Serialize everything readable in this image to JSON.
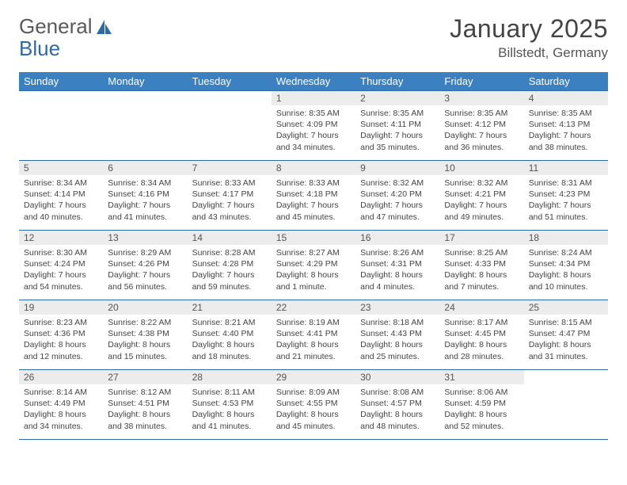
{
  "logo": {
    "text1": "General",
    "text2": "Blue"
  },
  "title": "January 2025",
  "location": "Billstedt, Germany",
  "colors": {
    "header_bg": "#3b81c2",
    "header_text": "#ffffff",
    "border": "#2d6aa8",
    "daynum_bg": "#ececec",
    "logo_gray": "#5a5a5a",
    "logo_blue": "#2d6aa8"
  },
  "weekdays": [
    "Sunday",
    "Monday",
    "Tuesday",
    "Wednesday",
    "Thursday",
    "Friday",
    "Saturday"
  ],
  "weeks": [
    [
      null,
      null,
      null,
      {
        "n": "1",
        "sr": "Sunrise: 8:35 AM",
        "ss": "Sunset: 4:09 PM",
        "d1": "Daylight: 7 hours",
        "d2": "and 34 minutes."
      },
      {
        "n": "2",
        "sr": "Sunrise: 8:35 AM",
        "ss": "Sunset: 4:11 PM",
        "d1": "Daylight: 7 hours",
        "d2": "and 35 minutes."
      },
      {
        "n": "3",
        "sr": "Sunrise: 8:35 AM",
        "ss": "Sunset: 4:12 PM",
        "d1": "Daylight: 7 hours",
        "d2": "and 36 minutes."
      },
      {
        "n": "4",
        "sr": "Sunrise: 8:35 AM",
        "ss": "Sunset: 4:13 PM",
        "d1": "Daylight: 7 hours",
        "d2": "and 38 minutes."
      }
    ],
    [
      {
        "n": "5",
        "sr": "Sunrise: 8:34 AM",
        "ss": "Sunset: 4:14 PM",
        "d1": "Daylight: 7 hours",
        "d2": "and 40 minutes."
      },
      {
        "n": "6",
        "sr": "Sunrise: 8:34 AM",
        "ss": "Sunset: 4:16 PM",
        "d1": "Daylight: 7 hours",
        "d2": "and 41 minutes."
      },
      {
        "n": "7",
        "sr": "Sunrise: 8:33 AM",
        "ss": "Sunset: 4:17 PM",
        "d1": "Daylight: 7 hours",
        "d2": "and 43 minutes."
      },
      {
        "n": "8",
        "sr": "Sunrise: 8:33 AM",
        "ss": "Sunset: 4:18 PM",
        "d1": "Daylight: 7 hours",
        "d2": "and 45 minutes."
      },
      {
        "n": "9",
        "sr": "Sunrise: 8:32 AM",
        "ss": "Sunset: 4:20 PM",
        "d1": "Daylight: 7 hours",
        "d2": "and 47 minutes."
      },
      {
        "n": "10",
        "sr": "Sunrise: 8:32 AM",
        "ss": "Sunset: 4:21 PM",
        "d1": "Daylight: 7 hours",
        "d2": "and 49 minutes."
      },
      {
        "n": "11",
        "sr": "Sunrise: 8:31 AM",
        "ss": "Sunset: 4:23 PM",
        "d1": "Daylight: 7 hours",
        "d2": "and 51 minutes."
      }
    ],
    [
      {
        "n": "12",
        "sr": "Sunrise: 8:30 AM",
        "ss": "Sunset: 4:24 PM",
        "d1": "Daylight: 7 hours",
        "d2": "and 54 minutes."
      },
      {
        "n": "13",
        "sr": "Sunrise: 8:29 AM",
        "ss": "Sunset: 4:26 PM",
        "d1": "Daylight: 7 hours",
        "d2": "and 56 minutes."
      },
      {
        "n": "14",
        "sr": "Sunrise: 8:28 AM",
        "ss": "Sunset: 4:28 PM",
        "d1": "Daylight: 7 hours",
        "d2": "and 59 minutes."
      },
      {
        "n": "15",
        "sr": "Sunrise: 8:27 AM",
        "ss": "Sunset: 4:29 PM",
        "d1": "Daylight: 8 hours",
        "d2": "and 1 minute."
      },
      {
        "n": "16",
        "sr": "Sunrise: 8:26 AM",
        "ss": "Sunset: 4:31 PM",
        "d1": "Daylight: 8 hours",
        "d2": "and 4 minutes."
      },
      {
        "n": "17",
        "sr": "Sunrise: 8:25 AM",
        "ss": "Sunset: 4:33 PM",
        "d1": "Daylight: 8 hours",
        "d2": "and 7 minutes."
      },
      {
        "n": "18",
        "sr": "Sunrise: 8:24 AM",
        "ss": "Sunset: 4:34 PM",
        "d1": "Daylight: 8 hours",
        "d2": "and 10 minutes."
      }
    ],
    [
      {
        "n": "19",
        "sr": "Sunrise: 8:23 AM",
        "ss": "Sunset: 4:36 PM",
        "d1": "Daylight: 8 hours",
        "d2": "and 12 minutes."
      },
      {
        "n": "20",
        "sr": "Sunrise: 8:22 AM",
        "ss": "Sunset: 4:38 PM",
        "d1": "Daylight: 8 hours",
        "d2": "and 15 minutes."
      },
      {
        "n": "21",
        "sr": "Sunrise: 8:21 AM",
        "ss": "Sunset: 4:40 PM",
        "d1": "Daylight: 8 hours",
        "d2": "and 18 minutes."
      },
      {
        "n": "22",
        "sr": "Sunrise: 8:19 AM",
        "ss": "Sunset: 4:41 PM",
        "d1": "Daylight: 8 hours",
        "d2": "and 21 minutes."
      },
      {
        "n": "23",
        "sr": "Sunrise: 8:18 AM",
        "ss": "Sunset: 4:43 PM",
        "d1": "Daylight: 8 hours",
        "d2": "and 25 minutes."
      },
      {
        "n": "24",
        "sr": "Sunrise: 8:17 AM",
        "ss": "Sunset: 4:45 PM",
        "d1": "Daylight: 8 hours",
        "d2": "and 28 minutes."
      },
      {
        "n": "25",
        "sr": "Sunrise: 8:15 AM",
        "ss": "Sunset: 4:47 PM",
        "d1": "Daylight: 8 hours",
        "d2": "and 31 minutes."
      }
    ],
    [
      {
        "n": "26",
        "sr": "Sunrise: 8:14 AM",
        "ss": "Sunset: 4:49 PM",
        "d1": "Daylight: 8 hours",
        "d2": "and 34 minutes."
      },
      {
        "n": "27",
        "sr": "Sunrise: 8:12 AM",
        "ss": "Sunset: 4:51 PM",
        "d1": "Daylight: 8 hours",
        "d2": "and 38 minutes."
      },
      {
        "n": "28",
        "sr": "Sunrise: 8:11 AM",
        "ss": "Sunset: 4:53 PM",
        "d1": "Daylight: 8 hours",
        "d2": "and 41 minutes."
      },
      {
        "n": "29",
        "sr": "Sunrise: 8:09 AM",
        "ss": "Sunset: 4:55 PM",
        "d1": "Daylight: 8 hours",
        "d2": "and 45 minutes."
      },
      {
        "n": "30",
        "sr": "Sunrise: 8:08 AM",
        "ss": "Sunset: 4:57 PM",
        "d1": "Daylight: 8 hours",
        "d2": "and 48 minutes."
      },
      {
        "n": "31",
        "sr": "Sunrise: 8:06 AM",
        "ss": "Sunset: 4:59 PM",
        "d1": "Daylight: 8 hours",
        "d2": "and 52 minutes."
      },
      null
    ]
  ]
}
